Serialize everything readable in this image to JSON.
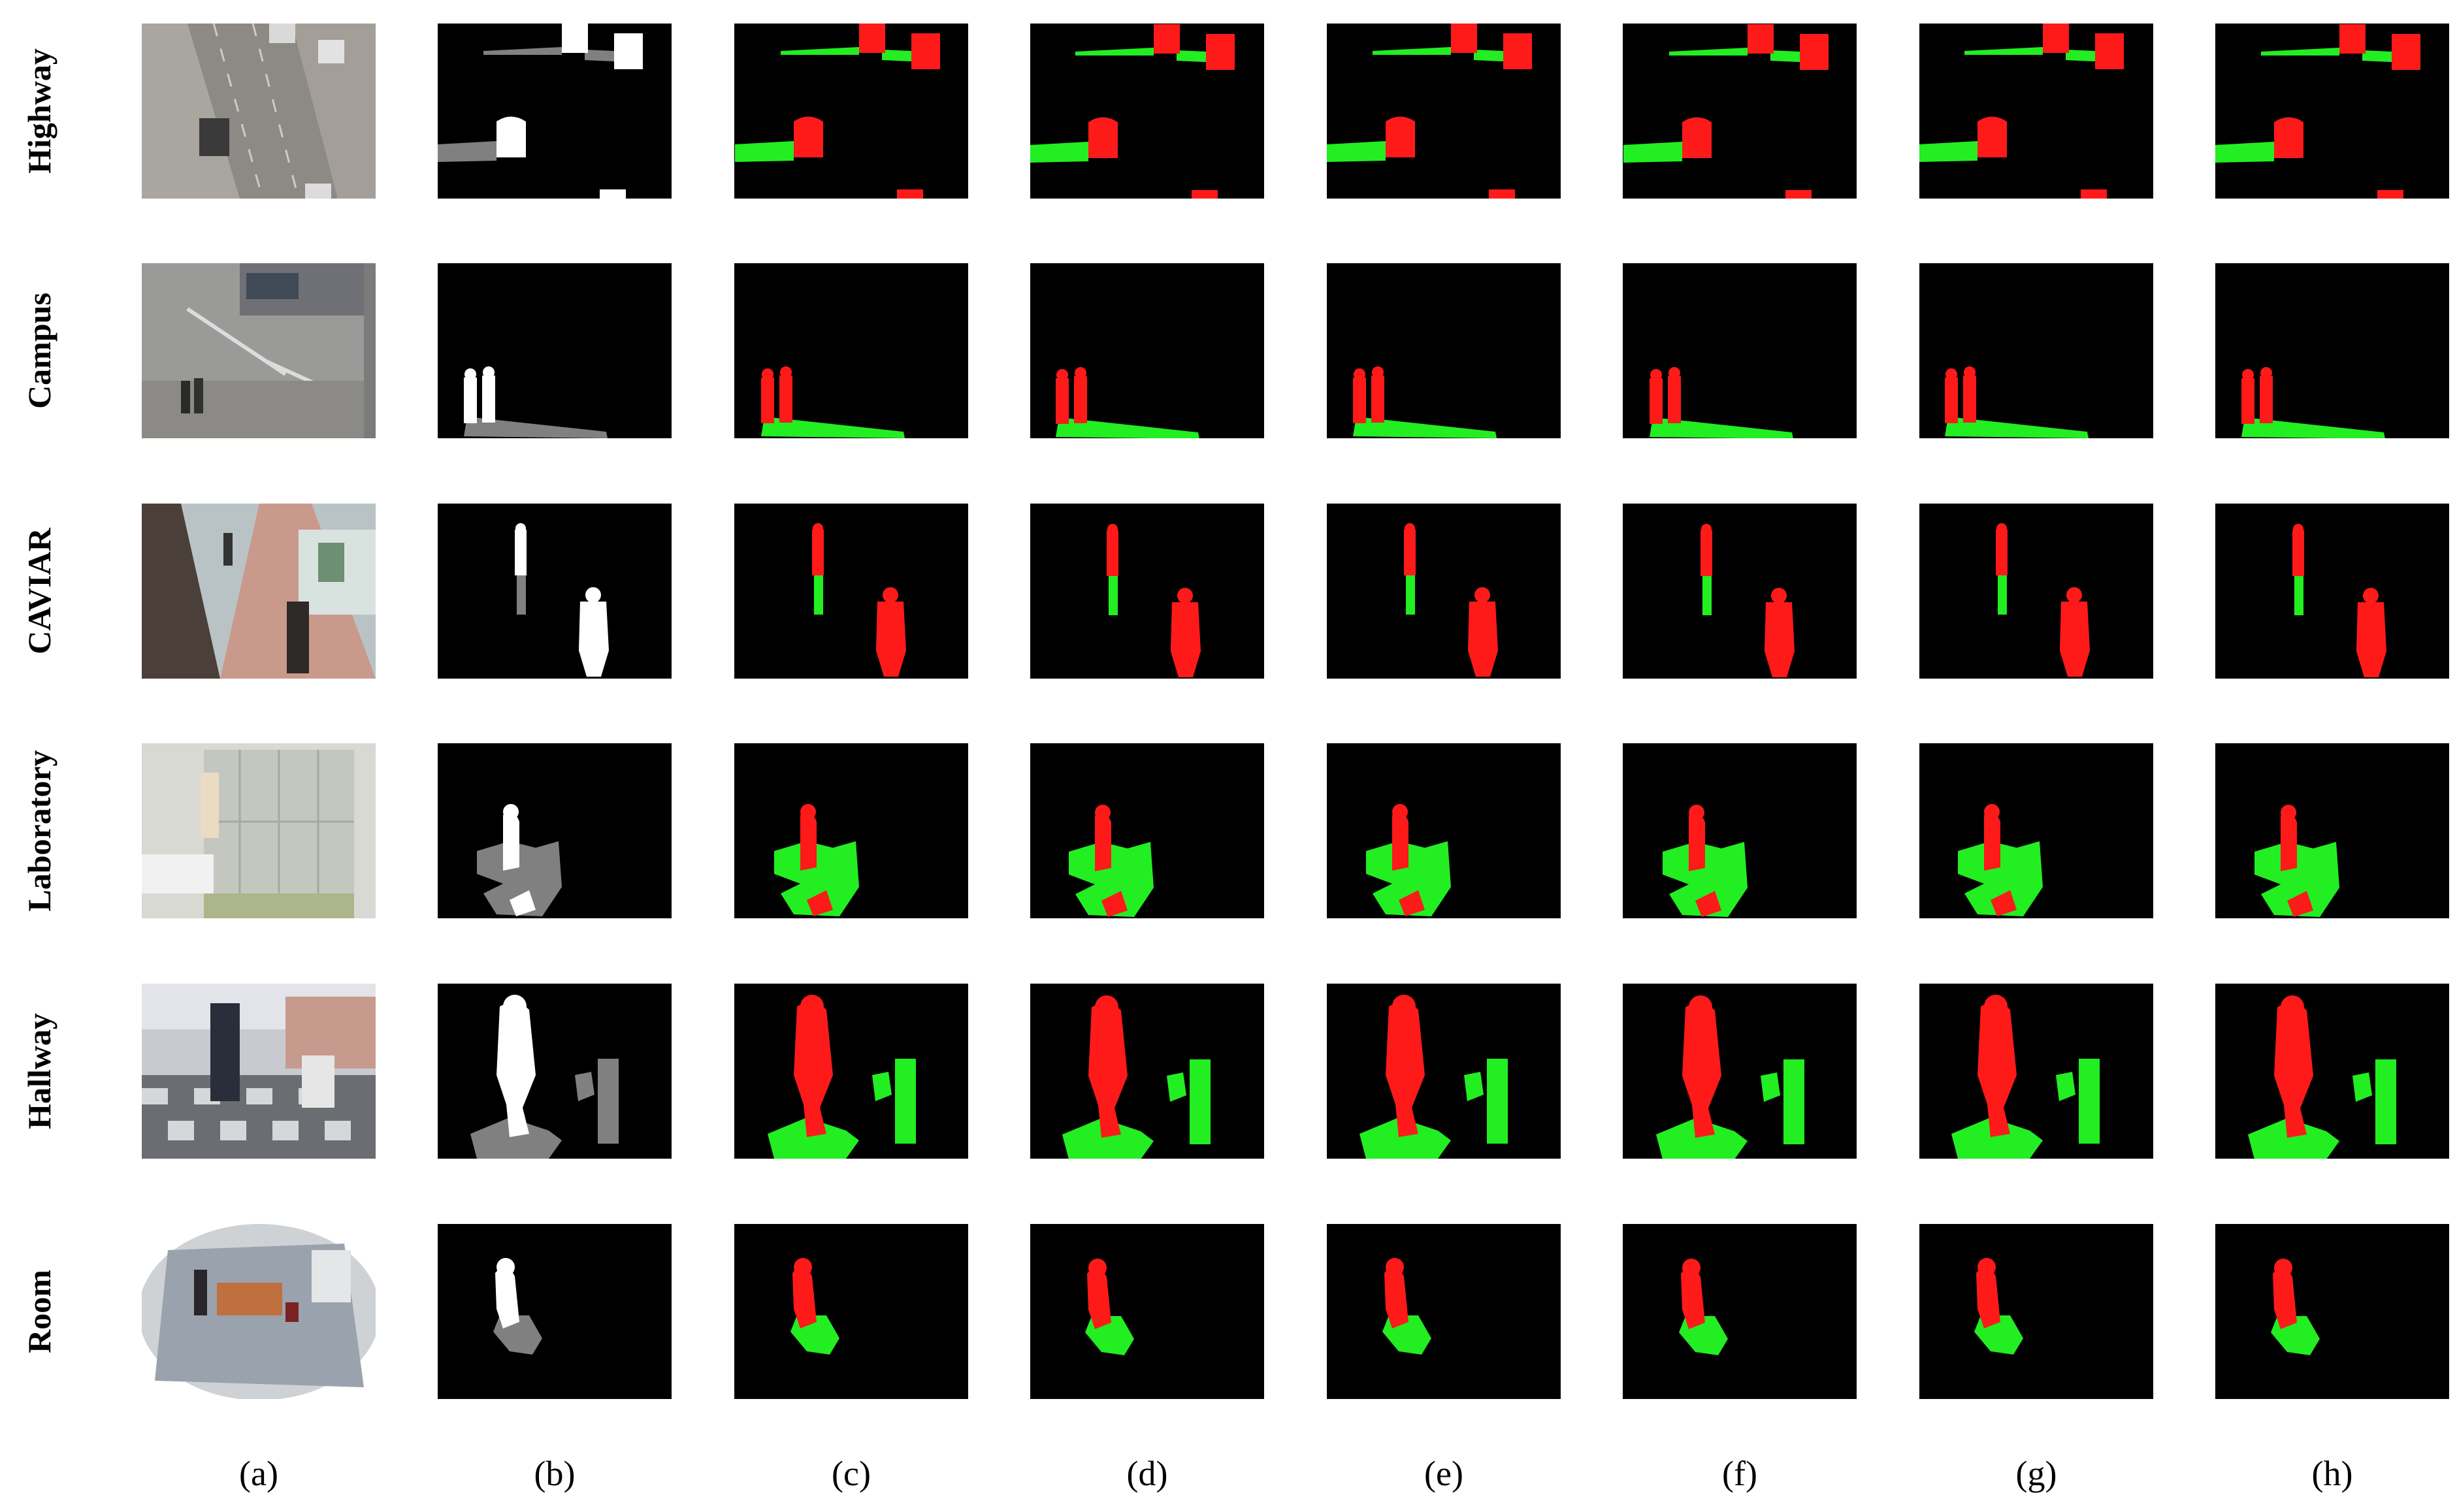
{
  "figure": {
    "row_labels": [
      "Highway",
      "Campus",
      "CAVIAR",
      "Laboratory",
      "Hallway",
      "Room"
    ],
    "column_labels": [
      "(a)",
      "(b)",
      "(c)",
      "(d)",
      "(e)",
      "(f)",
      "(g)",
      "(h)"
    ],
    "colors": {
      "background": "#000000",
      "object": "#ffffff",
      "shadow": "#808080",
      "detected_object": "#ff1a1a",
      "detected_shadow": "#22ee22"
    }
  }
}
